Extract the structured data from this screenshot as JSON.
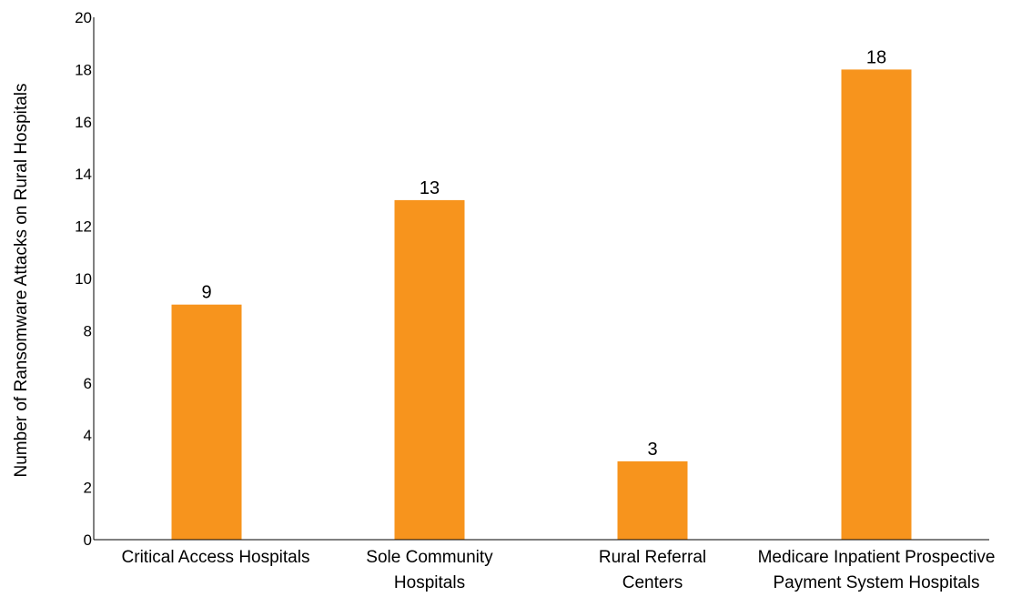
{
  "chart_data": {
    "type": "bar",
    "categories": [
      [
        "Critical Access Hospitals"
      ],
      [
        "Sole Community",
        "Hospitals"
      ],
      [
        "Rural Referral",
        "Centers"
      ],
      [
        "Medicare Inpatient Prospective",
        "Payment System Hospitals"
      ]
    ],
    "values": [
      9,
      13,
      3,
      18
    ],
    "data_labels": [
      "9",
      "13",
      "3",
      "18"
    ],
    "ylabel": "Number of Ransomware Attacks on Rural Hospitals",
    "xlabel": "",
    "ylim": [
      0,
      20
    ],
    "yticks": [
      0,
      2,
      4,
      6,
      8,
      10,
      12,
      14,
      16,
      18,
      20
    ],
    "grid": false,
    "bar_color": "#f7941d",
    "axis_color": "#000000"
  }
}
